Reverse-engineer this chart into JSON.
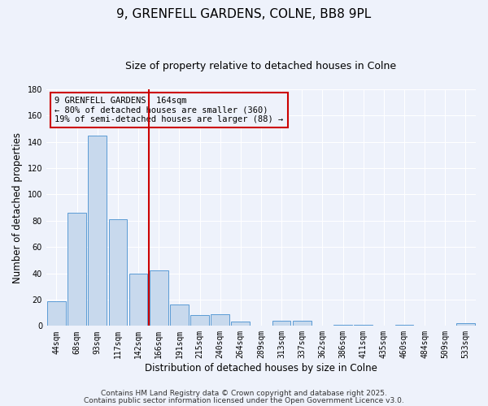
{
  "title": "9, GRENFELL GARDENS, COLNE, BB8 9PL",
  "subtitle": "Size of property relative to detached houses in Colne",
  "xlabel": "Distribution of detached houses by size in Colne",
  "ylabel": "Number of detached properties",
  "categories": [
    "44sqm",
    "68sqm",
    "93sqm",
    "117sqm",
    "142sqm",
    "166sqm",
    "191sqm",
    "215sqm",
    "240sqm",
    "264sqm",
    "289sqm",
    "313sqm",
    "337sqm",
    "362sqm",
    "386sqm",
    "411sqm",
    "435sqm",
    "460sqm",
    "484sqm",
    "509sqm",
    "533sqm"
  ],
  "values": [
    19,
    86,
    145,
    81,
    40,
    42,
    16,
    8,
    9,
    3,
    0,
    4,
    4,
    0,
    1,
    1,
    0,
    1,
    0,
    0,
    2
  ],
  "bar_color": "#c8d9ed",
  "bar_edge_color": "#5b9bd5",
  "vline_x": 4.5,
  "vline_color": "#cc0000",
  "annotation_text": "9 GRENFELL GARDENS: 164sqm\n← 80% of detached houses are smaller (360)\n19% of semi-detached houses are larger (88) →",
  "annotation_box_edge_color": "#cc0000",
  "ylim": [
    0,
    180
  ],
  "yticks": [
    0,
    20,
    40,
    60,
    80,
    100,
    120,
    140,
    160,
    180
  ],
  "footer1": "Contains HM Land Registry data © Crown copyright and database right 2025.",
  "footer2": "Contains public sector information licensed under the Open Government Licence v3.0.",
  "bg_color": "#eef2fb",
  "grid_color": "#ffffff",
  "title_fontsize": 11,
  "subtitle_fontsize": 9,
  "axis_label_fontsize": 8.5,
  "tick_fontsize": 7,
  "annotation_fontsize": 7.5,
  "footer_fontsize": 6.5
}
